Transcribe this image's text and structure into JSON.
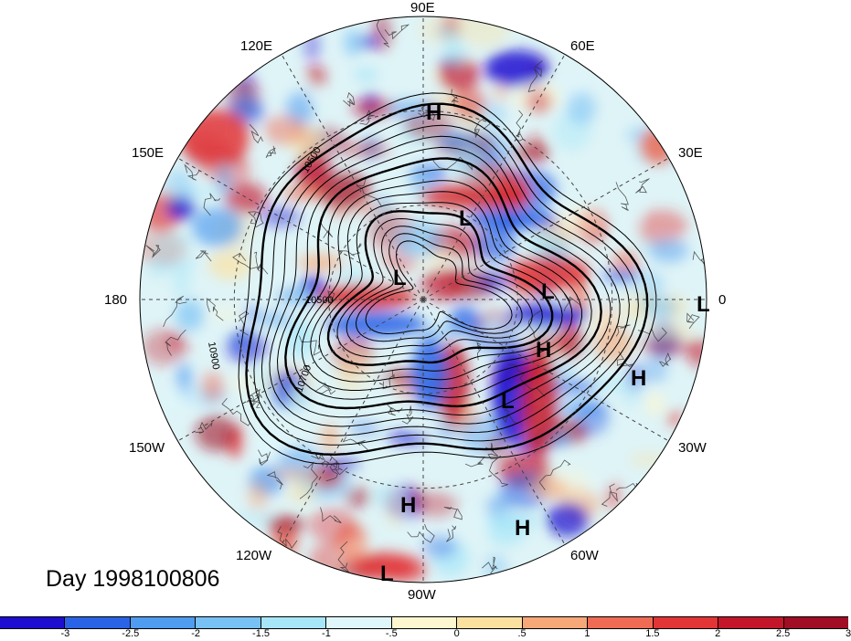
{
  "title": "Day 1998100806",
  "longitude_labels": [
    {
      "id": "90e",
      "text": "90E"
    },
    {
      "id": "60e",
      "text": "60E"
    },
    {
      "id": "30e",
      "text": "30E"
    },
    {
      "id": "0",
      "text": "0"
    },
    {
      "id": "30w",
      "text": "30W"
    },
    {
      "id": "60w",
      "text": "60W"
    },
    {
      "id": "90w",
      "text": "90W"
    },
    {
      "id": "120w",
      "text": "120W"
    },
    {
      "id": "150w",
      "text": "150W"
    },
    {
      "id": "180",
      "text": "180"
    },
    {
      "id": "150e",
      "text": "150E"
    },
    {
      "id": "120e",
      "text": "120E"
    }
  ],
  "pressure_centers": [
    {
      "type": "H",
      "text": "H"
    },
    {
      "type": "L",
      "text": "L"
    },
    {
      "type": "L",
      "text": "L"
    },
    {
      "type": "L",
      "text": "L"
    },
    {
      "type": "L",
      "text": "L"
    },
    {
      "type": "H",
      "text": "H"
    },
    {
      "type": "H",
      "text": "H"
    },
    {
      "type": "L",
      "text": "L"
    },
    {
      "type": "H",
      "text": "H"
    },
    {
      "type": "H",
      "text": "H"
    },
    {
      "type": "L",
      "text": "L"
    }
  ],
  "contour_labels": [
    "10500",
    "10500",
    "10700",
    "10900"
  ],
  "colorbar": {
    "colors": [
      "#1e0fd0",
      "#2b63e6",
      "#4f9cf0",
      "#77c1f5",
      "#a7e6f8",
      "#dff7fb",
      "#fdf6cf",
      "#fbe1a0",
      "#f6a878",
      "#ef6b53",
      "#e33436",
      "#c4162a",
      "#a00d24"
    ],
    "tick_labels": [
      "-3",
      "-2.5",
      "-2",
      "-1.5",
      "-1",
      "-.5",
      "0",
      ".5",
      "1",
      "1.5",
      "2",
      "2.5",
      "3"
    ]
  }
}
